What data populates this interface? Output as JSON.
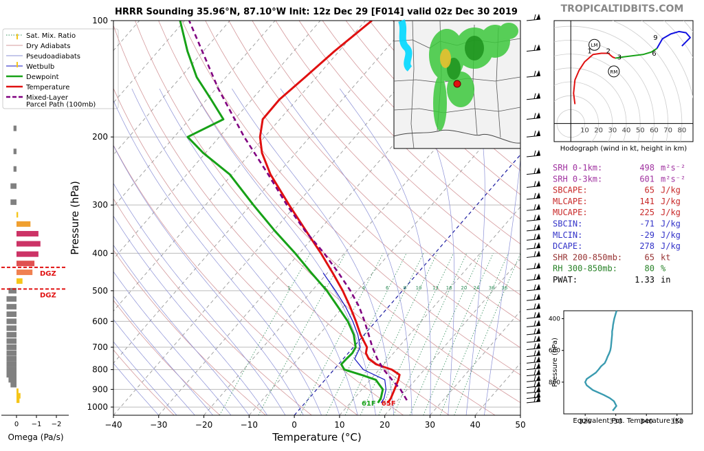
{
  "header": {
    "title": "HRRR Sounding 35.96°N, 87.10°W Init: 12z Dec 29 [F014] valid 02z Dec 30 2019",
    "brand": "TROPICALTIDBITS.COM"
  },
  "legend": {
    "items": [
      {
        "label": "Sat. Mix. Ratio",
        "color": "#2e8b57",
        "style": "dotted"
      },
      {
        "label": "Dry Adiabats",
        "color": "#d4989b",
        "style": "solid"
      },
      {
        "label": "Pseudoadiabats",
        "color": "#8a8fd6",
        "style": "solid"
      },
      {
        "label": "Wetbulb",
        "color": "#1010c0",
        "style": "solid"
      },
      {
        "label": "Dewpoint",
        "color": "#17a117",
        "style": "thick"
      },
      {
        "label": "Temperature",
        "color": "#e01010",
        "style": "thick"
      },
      {
        "label": "Mixed-Layer",
        "color": "#800080",
        "style": "dashed"
      },
      {
        "label": "Parcel Path (100mb)",
        "color": "#800080",
        "style": "none"
      }
    ]
  },
  "omega": {
    "xlabel": "Omega (Pa/s)",
    "xticks": [
      "0",
      "−1",
      "−2"
    ],
    "dgz_label": "DGZ",
    "dgz_pressures": [
      435,
      495
    ],
    "bars": [
      {
        "p": 110,
        "v": -0.05,
        "c": "#f5c518"
      },
      {
        "p": 130,
        "v": -0.05,
        "c": "#f5c518"
      },
      {
        "p": 190,
        "v": 0.15,
        "c": "#808080"
      },
      {
        "p": 218,
        "v": 0.15,
        "c": "#808080"
      },
      {
        "p": 242,
        "v": 0.15,
        "c": "#808080"
      },
      {
        "p": 268,
        "v": 0.3,
        "c": "#808080"
      },
      {
        "p": 295,
        "v": 0.3,
        "c": "#808080"
      },
      {
        "p": 318,
        "v": -0.08,
        "c": "#f5c518"
      },
      {
        "p": 336,
        "v": -0.7,
        "c": "#f0a030"
      },
      {
        "p": 356,
        "v": -1.1,
        "c": "#cc3366"
      },
      {
        "p": 378,
        "v": -1.2,
        "c": "#cc3366"
      },
      {
        "p": 402,
        "v": -1.1,
        "c": "#cc3366"
      },
      {
        "p": 425,
        "v": -0.9,
        "c": "#e05050"
      },
      {
        "p": 448,
        "v": -0.8,
        "c": "#f08050"
      },
      {
        "p": 472,
        "v": -0.3,
        "c": "#f5c518"
      },
      {
        "p": 500,
        "v": 0.4,
        "c": "#808080"
      },
      {
        "p": 525,
        "v": 0.5,
        "c": "#808080"
      },
      {
        "p": 550,
        "v": 0.5,
        "c": "#808080"
      },
      {
        "p": 575,
        "v": 0.5,
        "c": "#808080"
      },
      {
        "p": 600,
        "v": 0.5,
        "c": "#808080"
      },
      {
        "p": 625,
        "v": 0.5,
        "c": "#808080"
      },
      {
        "p": 650,
        "v": 0.5,
        "c": "#808080"
      },
      {
        "p": 675,
        "v": 0.5,
        "c": "#808080"
      },
      {
        "p": 700,
        "v": 0.5,
        "c": "#808080"
      },
      {
        "p": 725,
        "v": 0.5,
        "c": "#808080"
      },
      {
        "p": 750,
        "v": 0.5,
        "c": "#808080"
      },
      {
        "p": 775,
        "v": 0.5,
        "c": "#808080"
      },
      {
        "p": 800,
        "v": 0.5,
        "c": "#808080"
      },
      {
        "p": 825,
        "v": 0.5,
        "c": "#808080"
      },
      {
        "p": 850,
        "v": 0.4,
        "c": "#808080"
      },
      {
        "p": 875,
        "v": 0.3,
        "c": "#808080"
      },
      {
        "p": 910,
        "v": -0.1,
        "c": "#f5c518"
      },
      {
        "p": 935,
        "v": -0.2,
        "c": "#f5c518"
      },
      {
        "p": 960,
        "v": -0.15,
        "c": "#f5c518"
      }
    ]
  },
  "chart_data": [
    {
      "type": "line",
      "title": "HRRR Sounding 35.96°N, 87.10°W Init: 12z Dec 29 [F014] valid 02z Dec 30 2019",
      "xlabel": "Temperature (°C)",
      "ylabel": "Pressure (hPa)",
      "xlim": [
        -40,
        50
      ],
      "ylim": [
        1050,
        100
      ],
      "yscale": "log",
      "skew": true,
      "xticks": [
        -40,
        -30,
        -20,
        -10,
        0,
        10,
        20,
        30,
        40,
        50
      ],
      "yticks": [
        100,
        200,
        300,
        400,
        500,
        600,
        700,
        800,
        900,
        1000
      ],
      "mixing_ratio_labels": [
        "1",
        "2",
        "4",
        "6",
        "8",
        "10",
        "13",
        "16",
        "20",
        "24",
        "30",
        "36"
      ],
      "surface_labels": {
        "dewpoint": "61F",
        "temperature": "65F"
      },
      "series": [
        {
          "name": "Temperature",
          "color": "#e01010",
          "p": [
            975,
            950,
            900,
            850,
            825,
            800,
            775,
            750,
            725,
            700,
            650,
            600,
            550,
            500,
            450,
            400,
            350,
            300,
            250,
            220,
            200,
            180,
            160,
            140,
            120,
            100
          ],
          "t": [
            18.3,
            18.1,
            17.2,
            16.2,
            15.5,
            12.8,
            8.3,
            5.6,
            3.9,
            3.0,
            -0.8,
            -4.4,
            -8.5,
            -13.2,
            -18.8,
            -25.2,
            -32.8,
            -41.5,
            -51.5,
            -57.5,
            -61.0,
            -63.8,
            -63.9,
            -62.5,
            -61.0,
            -58.6
          ]
        },
        {
          "name": "Dewpoint",
          "color": "#17a117",
          "p": [
            975,
            950,
            900,
            850,
            825,
            800,
            775,
            750,
            725,
            700,
            650,
            600,
            550,
            500,
            450,
            400,
            350,
            300,
            250,
            220,
            200,
            180,
            160,
            140,
            120,
            100
          ],
          "t": [
            16.1,
            15.9,
            14.6,
            11.2,
            7.0,
            2.3,
            0.6,
            0.7,
            0.9,
            0.5,
            -2.3,
            -6.2,
            -11.2,
            -16.7,
            -23.5,
            -30.9,
            -39.7,
            -49.4,
            -60.5,
            -70.5,
            -77.0,
            -72.5,
            -79.0,
            -86.5,
            -93.5,
            -101.0
          ]
        },
        {
          "name": "Wetbulb",
          "color": "#1010c0",
          "p": [
            975,
            950,
            900,
            850,
            800,
            750,
            700,
            650,
            600,
            550,
            500,
            450
          ],
          "t": [
            16.8,
            16.6,
            15.3,
            13.2,
            6.5,
            2.5,
            1.5,
            -1.4,
            -5.1,
            -9.5,
            -14.8,
            -20.9
          ]
        },
        {
          "name": "Mixed-Layer Parcel Path (100mb)",
          "color": "#800080",
          "p": [
            960,
            900,
            850,
            800,
            750,
            700,
            650,
            600,
            550,
            500,
            450,
            400,
            350,
            300,
            250,
            200,
            150,
            100
          ],
          "t": [
            22.0,
            18.5,
            14.8,
            11.0,
            7.5,
            4.2,
            1.0,
            -2.5,
            -6.5,
            -11.5,
            -17.5,
            -24.5,
            -33.0,
            -42.0,
            -52.0,
            -64.5,
            -79.5,
            -99.0
          ]
        }
      ]
    },
    {
      "type": "line",
      "title": "Hodograph (wind in kt, height in km)",
      "xticks": [
        10,
        20,
        30,
        40,
        50,
        60,
        70,
        80
      ],
      "xlim": [
        -12,
        88
      ],
      "ylim": [
        -15,
        85
      ],
      "motion_markers": [
        {
          "label": "LM",
          "u": 17,
          "v": 65
        },
        {
          "label": "RM",
          "u": 31,
          "v": 43
        }
      ],
      "height_labels": [
        {
          "label": "1",
          "u": 13.5,
          "v": 58
        },
        {
          "label": "2",
          "u": 27,
          "v": 58
        },
        {
          "label": "3",
          "u": 35,
          "v": 53
        },
        {
          "label": "6",
          "u": 60,
          "v": 56
        },
        {
          "label": "9",
          "u": 61,
          "v": 69
        }
      ],
      "segments": [
        {
          "color": "#e01010",
          "u": [
            3,
            2,
            3,
            6,
            10,
            16,
            22,
            27,
            30,
            32
          ],
          "v": [
            16,
            25,
            36,
            44,
            51,
            57,
            58,
            58,
            55,
            54
          ]
        },
        {
          "color": "#17a117",
          "u": [
            32,
            38,
            45,
            52,
            58,
            62
          ],
          "v": [
            54,
            55,
            56,
            57,
            59,
            62
          ]
        },
        {
          "color": "#1010e0",
          "u": [
            62,
            66,
            72,
            78,
            83,
            86,
            80
          ],
          "v": [
            62,
            70,
            74,
            76,
            75,
            71,
            64
          ]
        }
      ]
    },
    {
      "type": "line",
      "xlabel": "Equivalent Pot. Temperature (K)",
      "ylabel": "Pressure (hPa)",
      "xlim": [
        313,
        355
      ],
      "ylim": [
        1000,
        350
      ],
      "xticks": [
        320,
        330,
        340,
        350
      ],
      "yticks": [
        400,
        600,
        800
      ],
      "series": [
        {
          "name": "Theta-e",
          "color": "#3a9bb0",
          "p": [
            980,
            950,
            920,
            900,
            880,
            850,
            820,
            800,
            780,
            760,
            740,
            720,
            700,
            680,
            660,
            640,
            620,
            600,
            580,
            560,
            540,
            520,
            500,
            480,
            460,
            440,
            420,
            400,
            380,
            360,
            350
          ],
          "t": [
            329.0,
            330.2,
            329.4,
            328.0,
            326.0,
            322.5,
            320.5,
            320.0,
            320.5,
            322.0,
            323.5,
            324.4,
            325.2,
            326.4,
            326.9,
            327.3,
            327.8,
            328.2,
            328.4,
            328.5,
            328.6,
            328.7,
            328.8,
            328.8,
            329.0,
            329.1,
            329.3,
            329.5,
            329.8,
            330.1,
            330.3
          ]
        }
      ]
    }
  ],
  "stats": [
    {
      "label": "SRH 0-1km:",
      "value": "498",
      "unit": "m²s⁻²",
      "color": "#a032a0"
    },
    {
      "label": "SRH 0-3km:",
      "value": "601",
      "unit": "m²s⁻²",
      "color": "#a032a0"
    },
    {
      "label": "SBCAPE:",
      "value": "65",
      "unit": "J/kg",
      "color": "#c82828"
    },
    {
      "label": "MLCAPE:",
      "value": "141",
      "unit": "J/kg",
      "color": "#c82828"
    },
    {
      "label": "MUCAPE:",
      "value": "225",
      "unit": "J/kg",
      "color": "#c82828"
    },
    {
      "label": "SBCIN:",
      "value": "-71",
      "unit": "J/kg",
      "color": "#3232c8"
    },
    {
      "label": "MLCIN:",
      "value": "-29",
      "unit": "J/kg",
      "color": "#3232c8"
    },
    {
      "label": "DCAPE:",
      "value": "278",
      "unit": "J/kg",
      "color": "#3232c8"
    },
    {
      "label": "SHR 200-850mb:",
      "value": "65",
      "unit": "kt",
      "color": "#963232"
    },
    {
      "label": "RH 300-850mb:",
      "value": "80",
      "unit": "%",
      "color": "#288228"
    },
    {
      "label": "PWAT:",
      "value": "1.33",
      "unit": "in",
      "color": "#000000"
    }
  ],
  "wind_barbs": {
    "color": "#000000",
    "p": [
      100,
      120,
      140,
      160,
      180,
      200,
      225,
      250,
      270,
      290,
      310,
      330,
      350,
      370,
      390,
      410,
      440,
      470,
      500,
      530,
      560,
      590,
      620,
      650,
      680,
      710,
      740,
      770,
      800,
      830,
      860,
      890,
      920,
      950,
      975
    ]
  }
}
